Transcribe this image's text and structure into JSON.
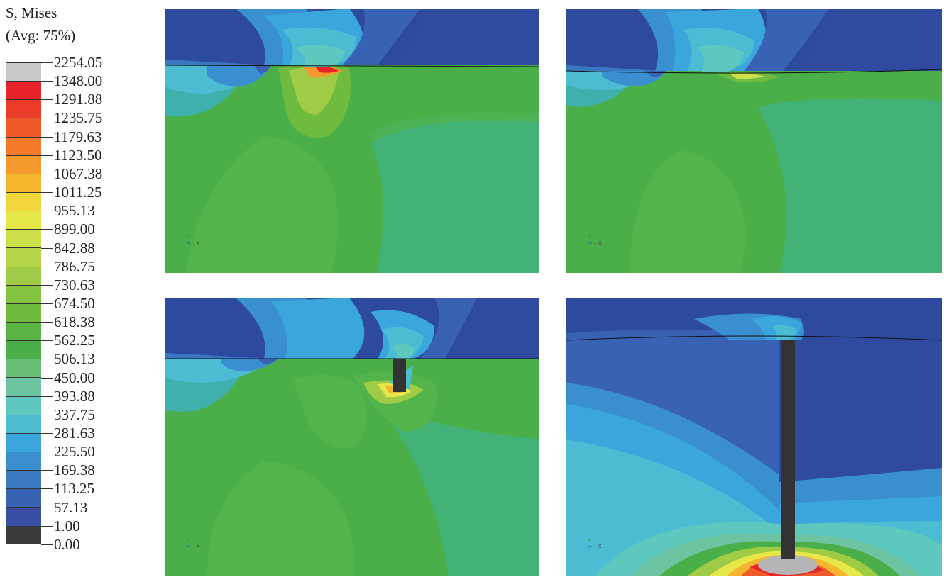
{
  "legend": {
    "title_line1": "S, Mises",
    "title_line2": "(Avg: 75%)",
    "levels": [
      "2254.05",
      "1348.00",
      "1291.88",
      "1235.75",
      "1179.63",
      "1123.50",
      "1067.38",
      "1011.25",
      "955.13",
      "899.00",
      "842.88",
      "786.75",
      "730.63",
      "674.50",
      "618.38",
      "562.25",
      "506.13",
      "450.00",
      "393.88",
      "337.75",
      "281.63",
      "225.50",
      "169.38",
      "113.25",
      "57.13",
      "1.00",
      "0.00"
    ],
    "colors": [
      "#c8c8c8",
      "#e8232a",
      "#eb3c2a",
      "#ee5a2a",
      "#f27a2a",
      "#f5992c",
      "#f6b52e",
      "#f0d63a",
      "#e6e84a",
      "#cde04a",
      "#b6d54a",
      "#9fcb46",
      "#86c340",
      "#6fbb40",
      "#5ab443",
      "#4aaf48",
      "#68bd78",
      "#6dc4a0",
      "#5ec8be",
      "#4bbcd2",
      "#3aa6dc",
      "#3a8fd0",
      "#3a78c2",
      "#3a62b4",
      "#3a4ea6",
      "#3a3a3a"
    ]
  },
  "panels": [
    {
      "id": "panel-top-left",
      "triad": {
        "y": "Y",
        "x": "X"
      }
    },
    {
      "id": "panel-top-right",
      "triad": {
        "y": "Y",
        "x": "X"
      }
    },
    {
      "id": "panel-bottom-left",
      "triad": {
        "y": "Y",
        "x": "X"
      }
    },
    {
      "id": "panel-bottom-right",
      "triad": {
        "y": "Y",
        "x": "X"
      }
    }
  ]
}
